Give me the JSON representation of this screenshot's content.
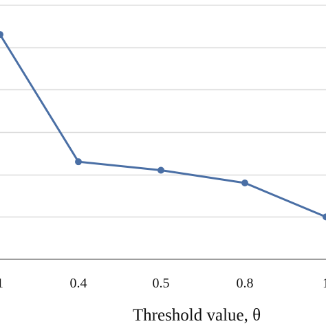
{
  "chart_data": {
    "type": "line",
    "categories": [
      "1",
      "0.4",
      "0.5",
      "0.8",
      "1"
    ],
    "series": [
      {
        "values": [
          0.78,
          0.48,
          0.46,
          0.43,
          0.35
        ]
      }
    ],
    "xlabel": "Threshold value, θ",
    "ylabel": "",
    "ylim": [
      0.25,
      0.85
    ],
    "grid": true,
    "gridlines": [
      0.35,
      0.45,
      0.55,
      0.65,
      0.75,
      0.85
    ],
    "colors": {
      "line": "#4a6fa5",
      "grid": "#d9d9d9",
      "axis": "#7f7f7f"
    }
  }
}
